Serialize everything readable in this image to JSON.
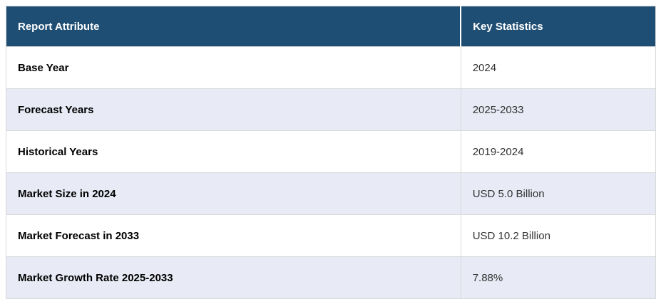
{
  "table": {
    "header": {
      "attribute_label": "Report Attribute",
      "statistics_label": "Key Statistics"
    },
    "rows": [
      {
        "attribute": "Base Year",
        "value": "2024"
      },
      {
        "attribute": "Forecast Years",
        "value": "2025-2033"
      },
      {
        "attribute": "Historical Years",
        "value": "2019-2024"
      },
      {
        "attribute": "Market Size in 2024",
        "value": "USD 5.0 Billion"
      },
      {
        "attribute": "Market Forecast in 2033",
        "value": "USD 10.2 Billion"
      },
      {
        "attribute": "Market Growth Rate 2025-2033",
        "value": "7.88%"
      }
    ],
    "colors": {
      "header_bg": "#1f4e74",
      "header_text": "#ffffff",
      "row_bg": "#ffffff",
      "row_alt_bg": "#e8eaf5",
      "border": "#d9d9d9",
      "label_text": "#000000",
      "value_text": "#333333"
    }
  },
  "chart_data": {
    "type": "table",
    "columns": [
      "Report Attribute",
      "Key Statistics"
    ],
    "rows": [
      [
        "Base Year",
        "2024"
      ],
      [
        "Forecast Years",
        "2025-2033"
      ],
      [
        "Historical Years",
        "2019-2024"
      ],
      [
        "Market Size in 2024",
        "USD 5.0 Billion"
      ],
      [
        "Market Forecast in 2033",
        "USD 10.2 Billion"
      ],
      [
        "Market Growth Rate 2025-2033",
        "7.88%"
      ]
    ],
    "title": "",
    "layout": {
      "alternating_row_shading": true,
      "header_style": "dark-blue, bold white text",
      "column_widths_pct": [
        70,
        30
      ]
    }
  }
}
